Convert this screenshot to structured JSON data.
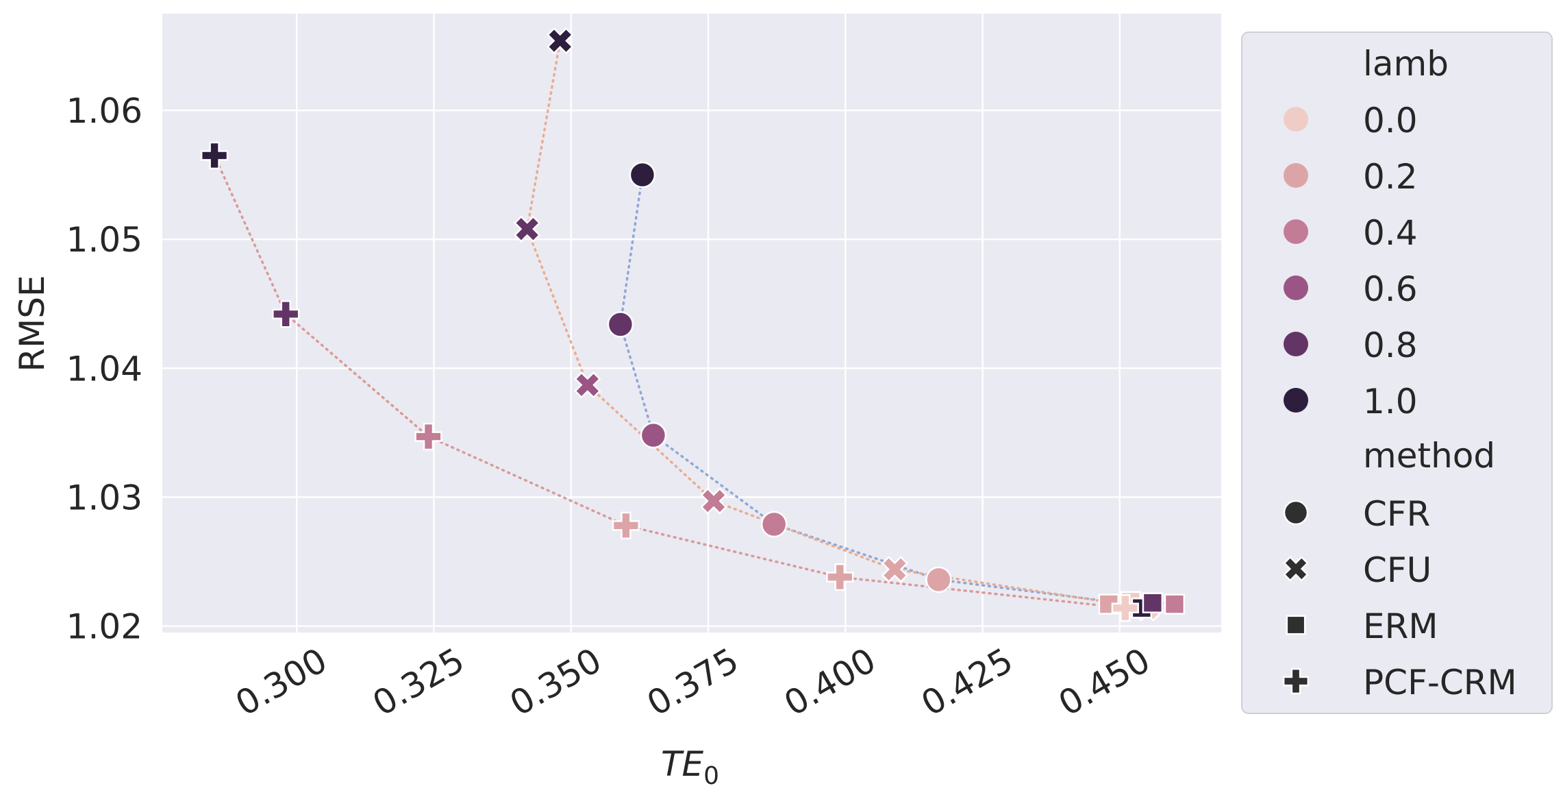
{
  "chart_data": {
    "type": "scatter",
    "xlabel": "TE",
    "xlabel_subscript": "0",
    "ylabel": "RMSE",
    "xlim": [
      0.2755,
      0.4685
    ],
    "ylim": [
      1.0195,
      1.0675
    ],
    "x_ticks": [
      0.3,
      0.325,
      0.35,
      0.375,
      0.4,
      0.425,
      0.45
    ],
    "x_tick_labels": [
      "0.300",
      "0.325",
      "0.350",
      "0.375",
      "0.400",
      "0.425",
      "0.450"
    ],
    "y_ticks": [
      1.02,
      1.03,
      1.04,
      1.05,
      1.06
    ],
    "y_tick_labels": [
      "1.02",
      "1.03",
      "1.04",
      "1.05",
      "1.06"
    ],
    "grid": true,
    "background_color": "#eaeaf2",
    "legend_position": "outside-right",
    "legend": {
      "lamb_title": "lamb",
      "lamb_values": [
        {
          "label": "0.0",
          "color": "#efcdc6"
        },
        {
          "label": "0.2",
          "color": "#dda4a8"
        },
        {
          "label": "0.4",
          "color": "#c37c95"
        },
        {
          "label": "0.6",
          "color": "#9a5585"
        },
        {
          "label": "0.8",
          "color": "#633466"
        },
        {
          "label": "1.0",
          "color": "#2d1e3e"
        }
      ],
      "method_title": "method",
      "methods": [
        {
          "label": "CFR",
          "marker": "circle"
        },
        {
          "label": "CFU",
          "marker": "x"
        },
        {
          "label": "ERM",
          "marker": "square"
        },
        {
          "label": "PCF-CRM",
          "marker": "plus"
        }
      ]
    },
    "series": [
      {
        "method": "CFR",
        "line_color": "#8fa8d6",
        "points": [
          {
            "x": 0.452,
            "y": 1.0217,
            "lamb": "0.0"
          },
          {
            "x": 0.417,
            "y": 1.0236,
            "lamb": "0.2"
          },
          {
            "x": 0.387,
            "y": 1.0279,
            "lamb": "0.4"
          },
          {
            "x": 0.365,
            "y": 1.0348,
            "lamb": "0.6"
          },
          {
            "x": 0.359,
            "y": 1.0434,
            "lamb": "0.8"
          },
          {
            "x": 0.363,
            "y": 1.055,
            "lamb": "1.0"
          }
        ]
      },
      {
        "method": "CFU",
        "line_color": "#e8ad90",
        "points": [
          {
            "x": 0.455,
            "y": 1.0214,
            "lamb": "0.0"
          },
          {
            "x": 0.409,
            "y": 1.0244,
            "lamb": "0.2"
          },
          {
            "x": 0.376,
            "y": 1.0297,
            "lamb": "0.4"
          },
          {
            "x": 0.353,
            "y": 1.0387,
            "lamb": "0.6"
          },
          {
            "x": 0.342,
            "y": 1.0508,
            "lamb": "0.8"
          },
          {
            "x": 0.348,
            "y": 1.0654,
            "lamb": "1.0"
          }
        ]
      },
      {
        "method": "ERM",
        "line_color": "#9dbb8e",
        "points": [
          {
            "x": 0.448,
            "y": 1.0217,
            "lamb": "0.2"
          },
          {
            "x": 0.452,
            "y": 1.0219,
            "lamb": "0.0"
          },
          {
            "x": 0.454,
            "y": 1.0214,
            "lamb": "1.0"
          },
          {
            "x": 0.456,
            "y": 1.0218,
            "lamb": "0.8"
          },
          {
            "x": 0.46,
            "y": 1.0217,
            "lamb": "0.4"
          }
        ]
      },
      {
        "method": "PCF-CRM",
        "line_color": "#d99a98",
        "points": [
          {
            "x": 0.451,
            "y": 1.0214,
            "lamb": "0.0"
          },
          {
            "x": 0.399,
            "y": 1.0238,
            "lamb": "0.2"
          },
          {
            "x": 0.36,
            "y": 1.0278,
            "lamb": "0.2"
          },
          {
            "x": 0.324,
            "y": 1.0347,
            "lamb": "0.4"
          },
          {
            "x": 0.298,
            "y": 1.0442,
            "lamb": "0.8"
          },
          {
            "x": 0.285,
            "y": 1.0565,
            "lamb": "1.0"
          }
        ]
      }
    ]
  }
}
